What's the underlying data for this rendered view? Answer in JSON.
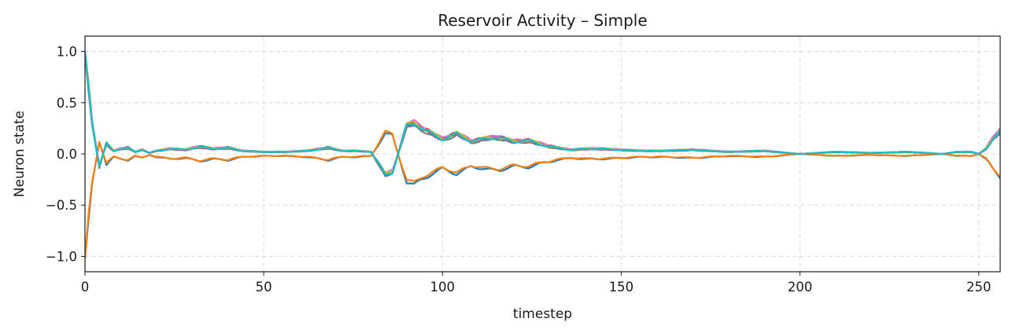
{
  "chart_data": {
    "type": "line",
    "title": "Reservoir Activity – Simple",
    "xlabel": "timestep",
    "ylabel": "Neuron state",
    "xlim": [
      0,
      256
    ],
    "ylim": [
      -1.15,
      1.15
    ],
    "xticks": [
      0,
      50,
      100,
      150,
      200,
      250
    ],
    "yticks": [
      1.0,
      0.5,
      0.0,
      -0.5,
      -1.0
    ],
    "xtick_labels": [
      "0",
      "50",
      "100",
      "150",
      "200",
      "250"
    ],
    "ytick_labels": [
      "1.0",
      "0.5",
      "0.0",
      "−0.5",
      "−1.0"
    ],
    "grid": true,
    "legend": "none",
    "series": [
      {
        "color": "#1f77b4",
        "sign": -1,
        "offset": 0.0
      },
      {
        "color": "#ff7f0e",
        "sign": -1,
        "offset": 0.02
      },
      {
        "color": "#2ca02c",
        "sign": 1,
        "offset": 0.0
      },
      {
        "color": "#d62728",
        "sign": 1,
        "offset": 0.01
      },
      {
        "color": "#9467bd",
        "sign": 1,
        "offset": -0.01
      },
      {
        "color": "#8c564b",
        "sign": 1,
        "offset": 0.0
      },
      {
        "color": "#e377c2",
        "sign": 1,
        "offset": 0.02
      },
      {
        "color": "#7f7f7f",
        "sign": 1,
        "offset": -0.02
      },
      {
        "color": "#bcbd22",
        "sign": 1,
        "offset": 0.01
      },
      {
        "color": "#17becf",
        "sign": 1,
        "offset": 0.0
      }
    ],
    "base_envelope": {
      "x": [
        0,
        2,
        4,
        6,
        8,
        10,
        12,
        14,
        16,
        18,
        20,
        24,
        28,
        32,
        36,
        40,
        44,
        50,
        56,
        62,
        68,
        72,
        76,
        80,
        84,
        86,
        88,
        90,
        92,
        94,
        96,
        100,
        104,
        108,
        112,
        116,
        120,
        124,
        128,
        132,
        136,
        140,
        144,
        150,
        156,
        162,
        170,
        180,
        190,
        200,
        210,
        220,
        230,
        240,
        244,
        248,
        250,
        252,
        254,
        256
      ],
      "y": [
        1.0,
        0.3,
        -0.12,
        0.1,
        0.03,
        0.05,
        0.06,
        0.02,
        0.04,
        0.01,
        0.03,
        0.05,
        0.04,
        0.07,
        0.05,
        0.06,
        0.03,
        0.02,
        0.02,
        0.03,
        0.06,
        0.03,
        0.03,
        0.02,
        -0.2,
        -0.18,
        0.05,
        0.28,
        0.3,
        0.25,
        0.22,
        0.14,
        0.2,
        0.12,
        0.15,
        0.16,
        0.12,
        0.13,
        0.09,
        0.06,
        0.04,
        0.05,
        0.05,
        0.04,
        0.03,
        0.03,
        0.04,
        0.02,
        0.03,
        0.0,
        0.02,
        0.01,
        0.02,
        0.0,
        0.02,
        0.02,
        0.0,
        0.05,
        0.15,
        0.23
      ]
    }
  }
}
